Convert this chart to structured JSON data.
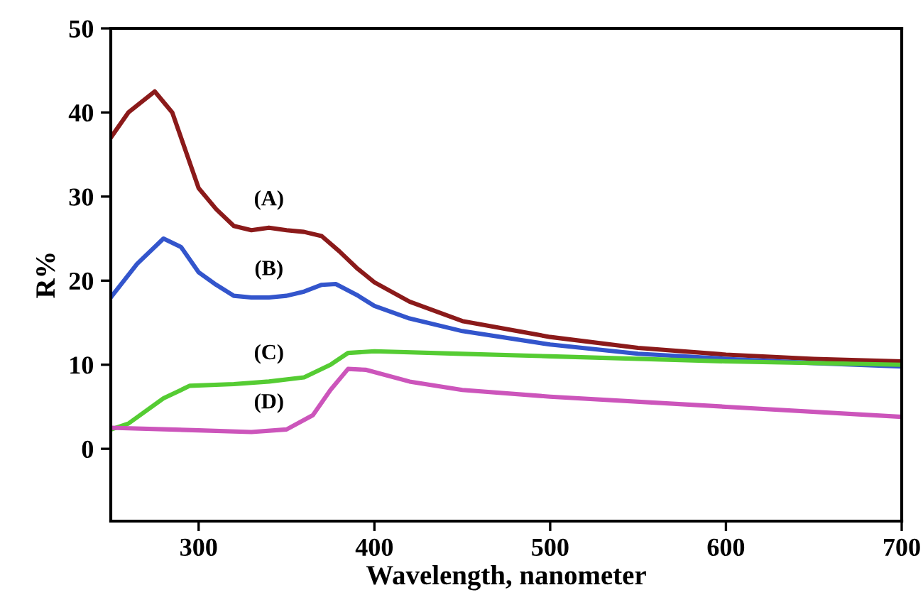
{
  "chart_data": {
    "type": "line",
    "xlabel": "Wavelength, nanometer",
    "ylabel": "R%",
    "xlim": [
      250,
      700
    ],
    "ylim": [
      -8.6,
      50
    ],
    "xticks": [
      300,
      400,
      500,
      600,
      700
    ],
    "yticks": [
      0,
      10,
      20,
      30,
      40,
      50
    ],
    "grid": false,
    "legend": false,
    "marker": "none",
    "line_style": "solid",
    "series": [
      {
        "name": "(A)",
        "color": "#8b1a1a",
        "x": [
          250,
          260,
          275,
          285,
          295,
          300,
          310,
          320,
          330,
          340,
          350,
          360,
          370,
          380,
          390,
          400,
          420,
          450,
          500,
          550,
          600,
          650,
          700
        ],
        "values": [
          37,
          40,
          42.5,
          40,
          34,
          31,
          28.5,
          26.5,
          26,
          26.3,
          26,
          25.8,
          25.3,
          23.5,
          21.5,
          19.8,
          17.5,
          15.2,
          13.3,
          12,
          11.2,
          10.7,
          10.4
        ]
      },
      {
        "name": "(B)",
        "color": "#3355cc",
        "x": [
          250,
          265,
          280,
          290,
          300,
          310,
          320,
          330,
          340,
          350,
          360,
          370,
          378,
          390,
          400,
          420,
          450,
          500,
          550,
          600,
          650,
          700
        ],
        "values": [
          18,
          22,
          25,
          24,
          21,
          19.5,
          18.2,
          18,
          18,
          18.2,
          18.7,
          19.5,
          19.6,
          18.3,
          17,
          15.5,
          14,
          12.4,
          11.3,
          10.7,
          10.2,
          9.8
        ]
      },
      {
        "name": "(C)",
        "color": "#55cc33",
        "x": [
          250,
          260,
          280,
          295,
          320,
          340,
          360,
          375,
          385,
          400,
          450,
          500,
          600,
          700
        ],
        "values": [
          2.3,
          3,
          6,
          7.5,
          7.7,
          8,
          8.5,
          10,
          11.4,
          11.6,
          11.3,
          11,
          10.4,
          10
        ]
      },
      {
        "name": "(D)",
        "color": "#cc55bb",
        "x": [
          250,
          300,
          330,
          350,
          365,
          375,
          385,
          395,
          420,
          450,
          500,
          600,
          700
        ],
        "values": [
          2.5,
          2.2,
          2,
          2.3,
          4,
          7,
          9.5,
          9.4,
          8,
          7,
          6.2,
          5,
          3.8
        ]
      }
    ]
  }
}
